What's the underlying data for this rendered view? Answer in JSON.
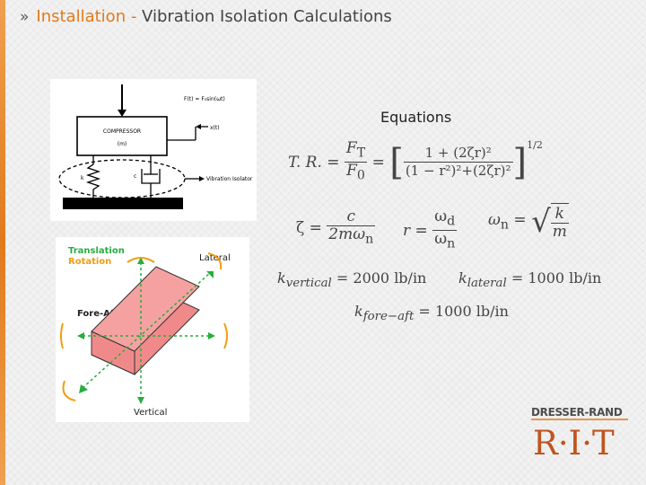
{
  "header": {
    "chevron": "»",
    "title_part1": "Installation - ",
    "title_part2": "Vibration Isolation Calculations"
  },
  "compressor_diagram": {
    "force_label": "F(t) = F₀sin(ωt)",
    "displacement_label": "x(t)",
    "compressor_label": "COMPRESSOR",
    "mass_label": "(m)",
    "spring_label": "k",
    "damper_label": "c",
    "isolator_label": "Vibration Isolator"
  },
  "dof_diagram": {
    "translation_label": "Translation",
    "rotation_label": "Rotation",
    "lateral_label": "Lateral",
    "fore_aft_label": "Fore-Aft",
    "vertical_label": "Vertical"
  },
  "equations": {
    "heading": "Equations",
    "tr_lhs": "T. R. =",
    "tr_num": "F",
    "tr_num_sub": "T",
    "tr_den": "F",
    "tr_den_sub": "0",
    "tr_eq": "=",
    "tr_inner_num": "1 + (2ζr)²",
    "tr_inner_den": "(1 − r²)²+(2ζr)²",
    "tr_exponent": "1/2",
    "zeta_lhs": "ζ =",
    "zeta_num": "c",
    "zeta_den": "2mω",
    "zeta_den_sub": "n",
    "r_lhs": "r =",
    "r_num": "ω",
    "r_num_sub": "d",
    "r_den": "ω",
    "r_den_sub": "n",
    "omega_lhs": "ω",
    "omega_lhs_sub": "n",
    "omega_eq": "=",
    "omega_num": "k",
    "omega_den": "m",
    "k_vertical": "k",
    "k_vertical_sub": "vertical",
    "k_vertical_value": "= 2000 lb/in",
    "k_lateral": "k",
    "k_lateral_sub": "lateral",
    "k_lateral_value": "= 1000 lb/in",
    "k_fore_aft": "k",
    "k_fore_aft_sub": "fore−aft",
    "k_fore_aft_value": "= 1000 lb/in"
  },
  "logo": {
    "company": "DRESSER-RAND",
    "letters": "R·I·T",
    "colors": {
      "company": "#4d4d4d",
      "letters": "#c0541e",
      "accent": "#e07a1c"
    }
  }
}
